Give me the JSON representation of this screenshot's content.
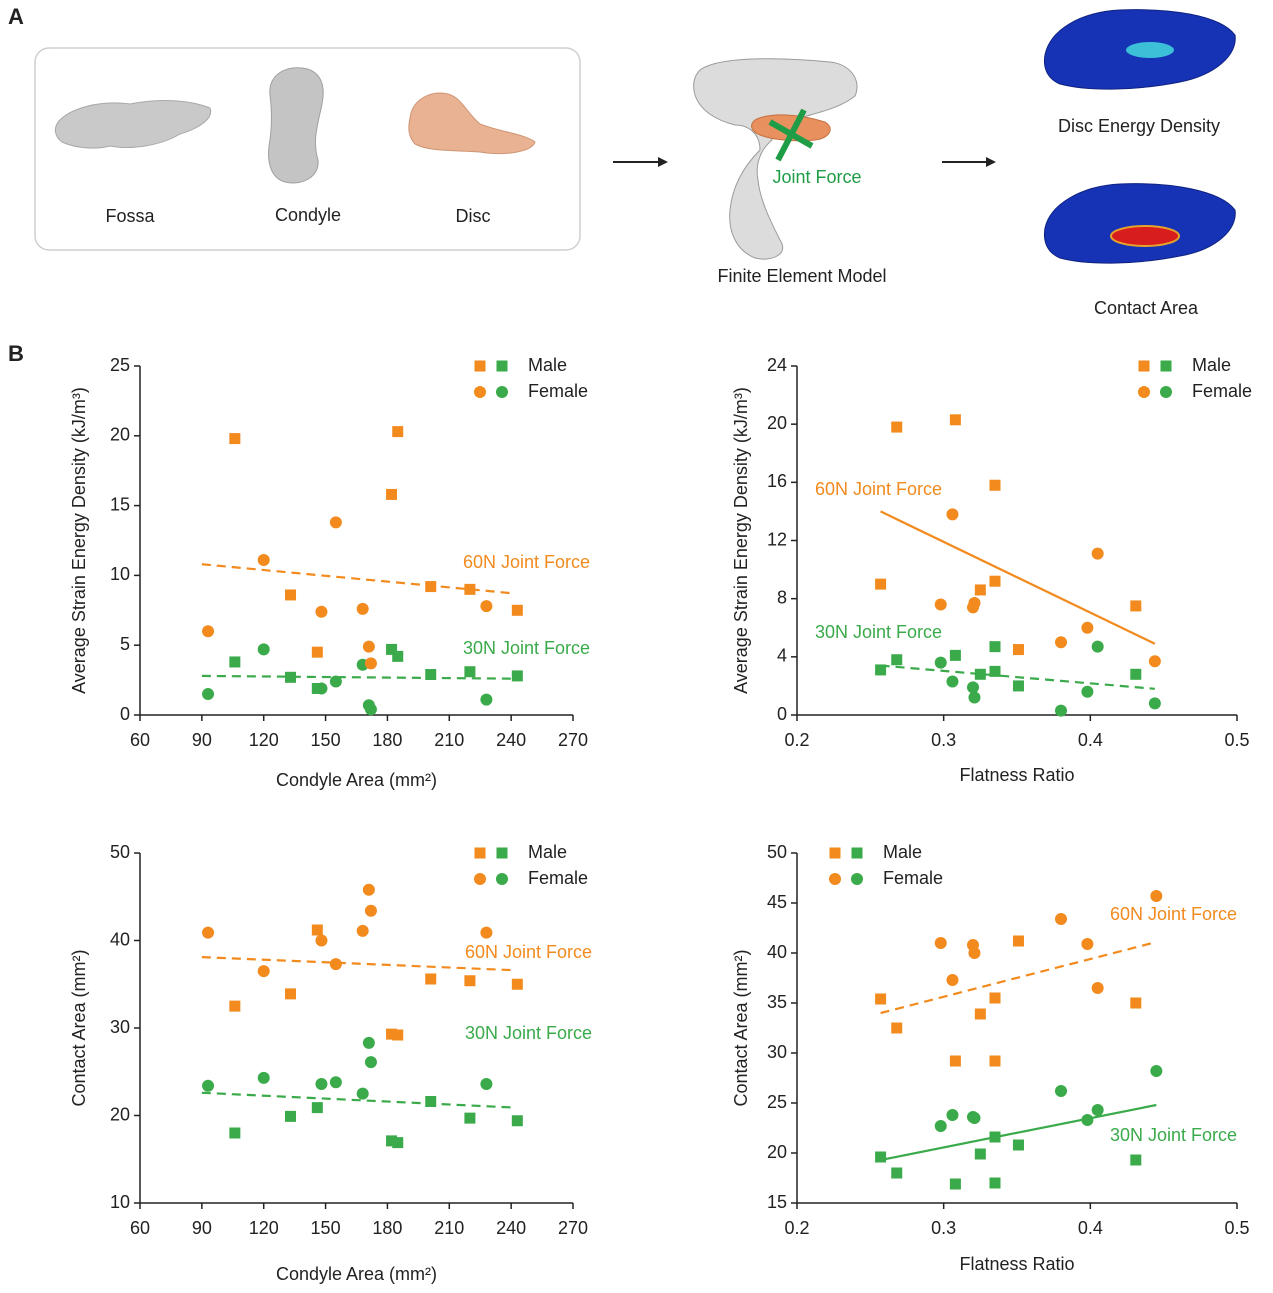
{
  "panel_labels": [
    "A",
    "B"
  ],
  "panel_a": {
    "components": [
      "Fossa",
      "Condyle",
      "Disc"
    ],
    "model_label": "Finite Element Model",
    "force_label": "Joint Force",
    "outputs": [
      "Disc Energy Density",
      "Contact Area"
    ]
  },
  "chart_data": [
    {
      "type": "scatter",
      "xlabel": "Condyle Area (mm²)",
      "ylabel": "Average Strain Energy Density (kJ/m³)",
      "xlim": [
        60,
        270
      ],
      "xticks": [
        60,
        90,
        120,
        150,
        180,
        210,
        240,
        270
      ],
      "ylim": [
        0,
        25
      ],
      "yticks": [
        0,
        5,
        10,
        15,
        20,
        25
      ],
      "legend": {
        "position": "upper right",
        "entries": [
          {
            "label": "Male",
            "marker": "square"
          },
          {
            "label": "Female",
            "marker": "circle"
          }
        ]
      },
      "series": [
        {
          "marker": "square",
          "color": "#3aaa4a",
          "x": [
            106,
            133,
            146,
            182,
            185,
            201,
            220,
            243
          ],
          "values": [
            3.8,
            2.7,
            1.9,
            4.7,
            4.2,
            2.9,
            3.1,
            2.8
          ]
        },
        {
          "marker": "square",
          "color": "#f28a1e",
          "x": [
            106,
            133,
            146,
            182,
            185,
            201,
            220,
            243
          ],
          "values": [
            19.8,
            8.6,
            4.5,
            15.8,
            20.3,
            9.2,
            9.0,
            7.5
          ]
        },
        {
          "marker": "circle",
          "color": "#3aaa4a",
          "x": [
            93,
            120,
            148,
            155,
            168,
            171,
            172,
            228
          ],
          "values": [
            1.5,
            4.7,
            1.9,
            2.4,
            3.6,
            0.7,
            0.4,
            1.1
          ]
        },
        {
          "marker": "circle",
          "color": "#f28a1e",
          "x": [
            93,
            120,
            148,
            155,
            168,
            171,
            172,
            228
          ],
          "values": [
            6.0,
            11.1,
            7.4,
            13.8,
            7.6,
            4.9,
            3.7,
            7.8
          ]
        }
      ],
      "fits": [
        {
          "color": "#f28a1e",
          "dashed": true,
          "x": [
            90,
            242
          ],
          "values": [
            10.8,
            8.7
          ]
        },
        {
          "color": "#3aaa4a",
          "dashed": true,
          "x": [
            90,
            242
          ],
          "values": [
            2.8,
            2.6
          ]
        }
      ],
      "annotations": [
        {
          "text": "60N Joint Force",
          "color": "#f28a1e"
        },
        {
          "text": "30N Joint Force",
          "color": "#3aaa4a"
        }
      ]
    },
    {
      "type": "scatter",
      "xlabel": "Flatness Ratio",
      "ylabel": "Average Strain Energy Density (kJ/m³)",
      "xlim": [
        0.2,
        0.5
      ],
      "xticks": [
        0.2,
        0.3,
        0.4,
        0.5
      ],
      "ylim": [
        0,
        24
      ],
      "yticks": [
        0,
        4,
        8,
        12,
        16,
        20,
        24
      ],
      "legend": {
        "position": "upper right",
        "entries": [
          {
            "label": "Male",
            "marker": "square"
          },
          {
            "label": "Female",
            "marker": "circle"
          }
        ]
      },
      "series": [
        {
          "marker": "square",
          "color": "#3aaa4a",
          "x": [
            0.257,
            0.268,
            0.308,
            0.325,
            0.335,
            0.335,
            0.351,
            0.431
          ],
          "values": [
            3.1,
            3.8,
            4.1,
            2.8,
            3.0,
            4.7,
            2.0,
            2.8
          ]
        },
        {
          "marker": "square",
          "color": "#f28a1e",
          "x": [
            0.257,
            0.268,
            0.308,
            0.325,
            0.335,
            0.335,
            0.351,
            0.431
          ],
          "values": [
            9.0,
            19.8,
            20.3,
            8.6,
            9.2,
            15.8,
            4.5,
            7.5
          ]
        },
        {
          "marker": "circle",
          "color": "#3aaa4a",
          "x": [
            0.298,
            0.306,
            0.32,
            0.321,
            0.38,
            0.398,
            0.405,
            0.444
          ],
          "values": [
            3.6,
            2.3,
            1.9,
            1.2,
            0.3,
            1.6,
            4.7,
            0.8
          ]
        },
        {
          "marker": "circle",
          "color": "#f28a1e",
          "x": [
            0.298,
            0.306,
            0.32,
            0.321,
            0.38,
            0.398,
            0.405,
            0.444
          ],
          "values": [
            7.6,
            13.8,
            7.4,
            7.7,
            5.0,
            6.0,
            11.1,
            3.7
          ]
        }
      ],
      "fits": [
        {
          "color": "#f28a1e",
          "dashed": false,
          "x": [
            0.257,
            0.444
          ],
          "values": [
            14.0,
            4.9
          ]
        },
        {
          "color": "#3aaa4a",
          "dashed": true,
          "x": [
            0.257,
            0.444
          ],
          "values": [
            3.4,
            1.8
          ]
        }
      ],
      "annotations": [
        {
          "text": "60N Joint Force",
          "color": "#f28a1e"
        },
        {
          "text": "30N Joint Force",
          "color": "#3aaa4a"
        }
      ]
    },
    {
      "type": "scatter",
      "xlabel": "Condyle Area (mm²)",
      "ylabel": "Contact Area (mm²)",
      "xlim": [
        60,
        270
      ],
      "xticks": [
        60,
        90,
        120,
        150,
        180,
        210,
        240,
        270
      ],
      "ylim": [
        10,
        50
      ],
      "yticks": [
        10,
        20,
        30,
        40,
        50
      ],
      "legend": {
        "position": "upper right",
        "entries": [
          {
            "label": "Male",
            "marker": "square"
          },
          {
            "label": "Female",
            "marker": "circle"
          }
        ]
      },
      "series": [
        {
          "marker": "square",
          "color": "#3aaa4a",
          "x": [
            106,
            133,
            146,
            182,
            185,
            201,
            220,
            243
          ],
          "values": [
            18.0,
            19.9,
            20.9,
            17.1,
            16.9,
            21.6,
            19.7,
            19.4
          ]
        },
        {
          "marker": "square",
          "color": "#f28a1e",
          "x": [
            106,
            133,
            146,
            182,
            185,
            201,
            220,
            243
          ],
          "values": [
            32.5,
            33.9,
            41.2,
            29.3,
            29.2,
            35.6,
            35.4,
            35.0
          ]
        },
        {
          "marker": "circle",
          "color": "#3aaa4a",
          "x": [
            93,
            120,
            148,
            155,
            168,
            171,
            172,
            228
          ],
          "values": [
            23.4,
            24.3,
            23.6,
            23.8,
            22.5,
            28.3,
            26.1,
            23.6
          ]
        },
        {
          "marker": "circle",
          "color": "#f28a1e",
          "x": [
            93,
            120,
            148,
            155,
            168,
            171,
            172,
            228
          ],
          "values": [
            40.9,
            36.5,
            40.0,
            37.3,
            41.1,
            45.8,
            43.4,
            40.9
          ]
        }
      ],
      "fits": [
        {
          "color": "#f28a1e",
          "dashed": true,
          "x": [
            90,
            242
          ],
          "values": [
            38.1,
            36.6
          ]
        },
        {
          "color": "#3aaa4a",
          "dashed": true,
          "x": [
            90,
            242
          ],
          "values": [
            22.6,
            20.9
          ]
        }
      ],
      "annotations": [
        {
          "text": "60N Joint Force",
          "color": "#f28a1e"
        },
        {
          "text": "30N Joint Force",
          "color": "#3aaa4a"
        }
      ]
    },
    {
      "type": "scatter",
      "xlabel": "Flatness Ratio",
      "ylabel": "Contact Area (mm²)",
      "xlim": [
        0.2,
        0.5
      ],
      "xticks": [
        0.2,
        0.3,
        0.4,
        0.5
      ],
      "ylim": [
        15,
        50
      ],
      "yticks": [
        15,
        20,
        25,
        30,
        35,
        40,
        45,
        50
      ],
      "legend": {
        "position": "upper left",
        "entries": [
          {
            "label": "Male",
            "marker": "square"
          },
          {
            "label": "Female",
            "marker": "circle"
          }
        ]
      },
      "series": [
        {
          "marker": "square",
          "color": "#3aaa4a",
          "x": [
            0.257,
            0.268,
            0.308,
            0.325,
            0.335,
            0.335,
            0.351,
            0.431
          ],
          "values": [
            19.6,
            18.0,
            16.9,
            19.9,
            21.6,
            17.0,
            20.8,
            19.3
          ]
        },
        {
          "marker": "square",
          "color": "#f28a1e",
          "x": [
            0.257,
            0.268,
            0.308,
            0.325,
            0.335,
            0.335,
            0.351,
            0.431
          ],
          "values": [
            35.4,
            32.5,
            29.2,
            33.9,
            35.5,
            29.2,
            41.2,
            35.0
          ]
        },
        {
          "marker": "circle",
          "color": "#3aaa4a",
          "x": [
            0.298,
            0.306,
            0.32,
            0.321,
            0.38,
            0.398,
            0.405,
            0.445
          ],
          "values": [
            22.7,
            23.8,
            23.6,
            23.5,
            26.2,
            23.3,
            24.3,
            28.2
          ]
        },
        {
          "marker": "circle",
          "color": "#f28a1e",
          "x": [
            0.298,
            0.306,
            0.32,
            0.321,
            0.38,
            0.398,
            0.405,
            0.445
          ],
          "values": [
            41.0,
            37.3,
            40.8,
            40.0,
            43.4,
            40.9,
            36.5,
            45.7
          ]
        }
      ],
      "fits": [
        {
          "color": "#f28a1e",
          "dashed": true,
          "x": [
            0.257,
            0.445
          ],
          "values": [
            34.0,
            41.1
          ]
        },
        {
          "color": "#3aaa4a",
          "dashed": false,
          "x": [
            0.257,
            0.445
          ],
          "values": [
            19.3,
            24.8
          ]
        }
      ],
      "annotations": [
        {
          "text": "60N Joint Force",
          "color": "#f28a1e"
        },
        {
          "text": "30N Joint Force",
          "color": "#3aaa4a"
        }
      ]
    }
  ]
}
